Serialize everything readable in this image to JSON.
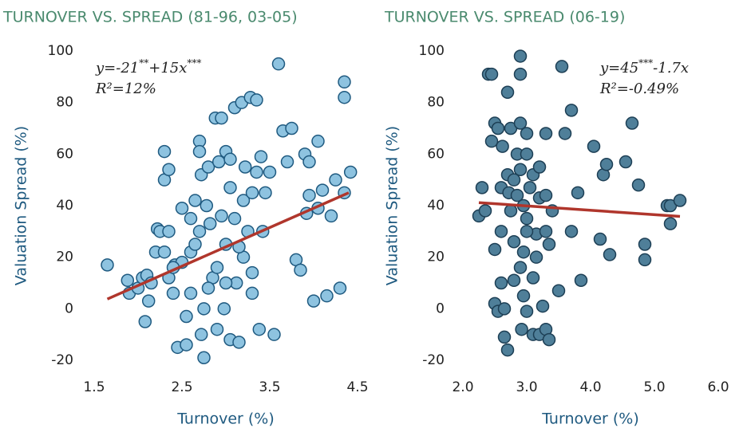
{
  "chart_data": [
    {
      "type": "scatter",
      "title": "TURNOVER VS. SPREAD (81-96, 03-05)",
      "x_label": "Turnover (%)",
      "y_label": "Valuation Spread (%)",
      "xlim": [
        1.5,
        4.5
      ],
      "ylim": [
        -20,
        100
      ],
      "xticks": [
        {
          "value": 1.5,
          "label": "1.5"
        },
        {
          "value": 2.5,
          "label": "2.5"
        },
        {
          "value": 3.5,
          "label": "3.5"
        },
        {
          "value": 4.5,
          "label": "4.5"
        }
      ],
      "yticks": [
        -20,
        0,
        20,
        40,
        60,
        80,
        100
      ],
      "equation_parts": [
        "y=-21",
        "**",
        "+15x",
        "***"
      ],
      "r_squared": "R²=12%",
      "fit": {
        "intercept": -21,
        "slope": 15,
        "x_range": [
          1.65,
          4.4
        ],
        "color": "#b0362c"
      },
      "series": [
        {
          "color": "#8ec3e0",
          "edge": "#1f5a80",
          "x": [
            1.65,
            1.88,
            1.9,
            2.0,
            2.05,
            2.08,
            2.1,
            2.12,
            2.15,
            2.2,
            2.22,
            2.25,
            2.3,
            2.3,
            2.35,
            2.35,
            2.3,
            2.35,
            2.4,
            2.42,
            2.45,
            2.5,
            2.5,
            2.55,
            2.55,
            2.6,
            2.6,
            2.65,
            2.65,
            2.7,
            2.7,
            2.7,
            2.72,
            2.72,
            2.75,
            2.75,
            2.78,
            2.8,
            2.82,
            2.85,
            2.88,
            2.9,
            2.92,
            2.95,
            2.95,
            2.98,
            3.0,
            3.0,
            3.05,
            3.05,
            3.05,
            3.1,
            3.1,
            3.12,
            3.15,
            3.18,
            3.2,
            3.2,
            3.22,
            3.25,
            3.28,
            3.3,
            3.3,
            3.35,
            3.35,
            3.38,
            3.4,
            3.42,
            3.45,
            3.5,
            3.55,
            3.6,
            3.65,
            3.7,
            3.75,
            3.8,
            3.85,
            3.9,
            3.92,
            3.95,
            3.95,
            4.0,
            4.05,
            4.05,
            4.1,
            4.15,
            4.2,
            4.25,
            4.3,
            4.35,
            4.35,
            4.35,
            4.42,
            3.3,
            2.9,
            3.0,
            2.8,
            3.15,
            2.4,
            2.6
          ],
          "values": [
            17,
            11,
            6,
            8,
            12,
            -5,
            13,
            3,
            10,
            22,
            31,
            30,
            61,
            50,
            54,
            30,
            22,
            12,
            6,
            17,
            -15,
            39,
            18,
            -14,
            -3,
            22,
            6,
            42,
            25,
            65,
            61,
            30,
            52,
            -10,
            -19,
            0,
            40,
            55,
            33,
            12,
            74,
            16,
            57,
            74,
            36,
            0,
            61,
            25,
            58,
            47,
            -12,
            78,
            35,
            10,
            -13,
            80,
            42,
            20,
            55,
            30,
            82,
            45,
            14,
            81,
            53,
            -8,
            59,
            30,
            45,
            53,
            -10,
            95,
            69,
            57,
            70,
            19,
            15,
            60,
            37,
            44,
            57,
            3,
            65,
            39,
            46,
            5,
            36,
            50,
            8,
            88,
            82,
            45,
            53,
            6,
            -8,
            10,
            8,
            24,
            16,
            35
          ]
        }
      ]
    },
    {
      "type": "scatter",
      "title": "TURNOVER VS. SPREAD (06-19)",
      "x_label": "Turnover (%)",
      "y_label": "Valuation Spread (%)",
      "xlim": [
        2.0,
        6.0
      ],
      "ylim": [
        -20,
        100
      ],
      "xticks": [
        {
          "value": 2,
          "label": "2.0"
        },
        {
          "value": 3,
          "label": "3.0"
        },
        {
          "value": 4,
          "label": "4.0"
        },
        {
          "value": 5,
          "label": "5.0"
        },
        {
          "value": 6,
          "label": "6.0"
        }
      ],
      "yticks": [
        -20,
        0,
        20,
        40,
        60,
        80,
        100
      ],
      "equation_parts": [
        "y=45",
        "***",
        "-1.7x",
        ""
      ],
      "r_squared": "R²=-0.49%",
      "fit": {
        "intercept": 45,
        "slope": -1.7,
        "x_range": [
          2.25,
          5.4
        ],
        "color": "#b0362c"
      },
      "series": [
        {
          "color": "#4f7f99",
          "edge": "#1d3f55",
          "x": [
            2.25,
            2.3,
            2.35,
            2.4,
            2.45,
            2.45,
            2.5,
            2.5,
            2.5,
            2.55,
            2.55,
            2.6,
            2.6,
            2.6,
            2.62,
            2.65,
            2.7,
            2.7,
            2.7,
            2.72,
            2.75,
            2.75,
            2.8,
            2.8,
            2.85,
            2.85,
            2.9,
            2.9,
            2.9,
            2.9,
            2.9,
            2.92,
            2.95,
            2.95,
            3.0,
            3.0,
            3.0,
            3.0,
            3.05,
            3.1,
            3.1,
            3.15,
            3.15,
            3.2,
            3.2,
            3.25,
            3.3,
            3.3,
            3.3,
            3.3,
            3.35,
            3.35,
            3.4,
            3.5,
            3.55,
            3.6,
            3.7,
            3.7,
            3.8,
            3.85,
            4.05,
            4.15,
            4.2,
            4.25,
            4.3,
            4.55,
            4.65,
            4.75,
            4.85,
            4.85,
            5.2,
            5.25,
            5.25,
            5.4,
            3.0,
            2.8,
            3.1,
            2.95,
            3.2,
            2.65
          ],
          "values": [
            36,
            47,
            38,
            91,
            91,
            65,
            72,
            2,
            23,
            70,
            -1,
            47,
            30,
            10,
            63,
            -11,
            84,
            52,
            -16,
            45,
            70,
            38,
            26,
            11,
            60,
            44,
            98,
            91,
            72,
            54,
            16,
            -8,
            40,
            5,
            68,
            60,
            35,
            -1,
            47,
            52,
            -10,
            20,
            29,
            43,
            -10,
            1,
            68,
            44,
            30,
            -8,
            25,
            -12,
            38,
            7,
            94,
            68,
            77,
            30,
            45,
            11,
            63,
            27,
            52,
            56,
            21,
            57,
            72,
            48,
            25,
            19,
            40,
            33,
            40,
            42,
            30,
            50,
            12,
            22,
            55,
            0
          ]
        }
      ]
    }
  ]
}
